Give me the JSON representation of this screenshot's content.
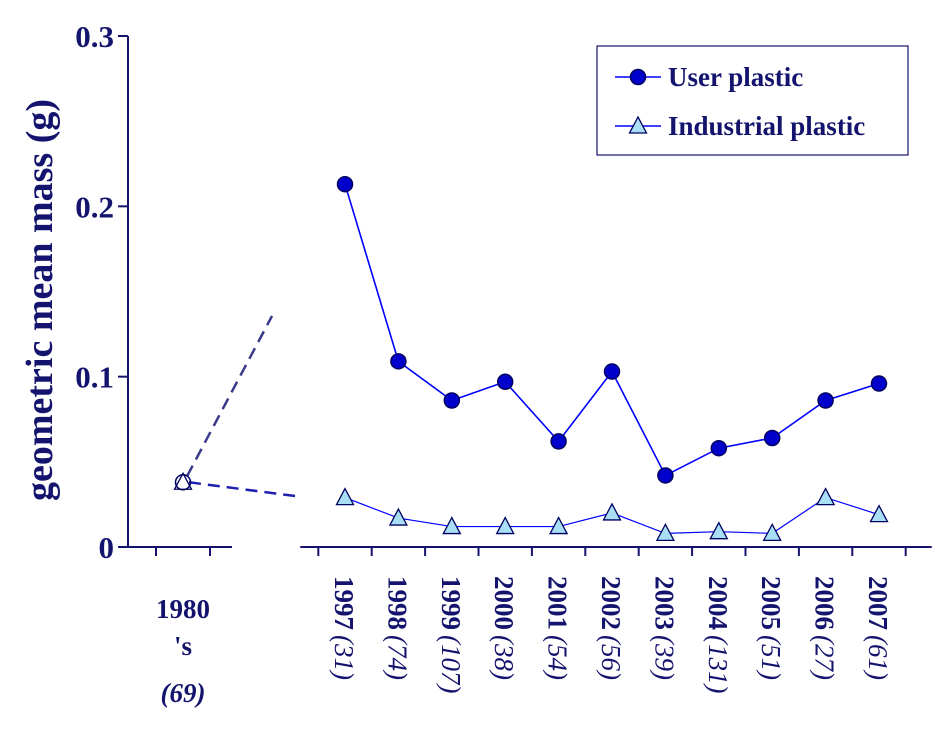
{
  "chart_data": {
    "type": "line",
    "y_label": "geometric mean mass (g)",
    "categories": [
      "1980's",
      "1997",
      "1998",
      "1999",
      "2000",
      "2001",
      "2002",
      "2003",
      "2004",
      "2005",
      "2006",
      "2007"
    ],
    "sample_sizes": [
      "(69)",
      "(31)",
      "(74)",
      "(107)",
      "(38)",
      "(54)",
      "(56)",
      "(39)",
      "(131)",
      "(51)",
      "(27)",
      "(61)"
    ],
    "x_axis_break": true,
    "series": [
      {
        "name": "User plastic",
        "color": "#0000ff",
        "marker": "circle",
        "values": [
          0.038,
          0.213,
          0.109,
          0.086,
          0.097,
          0.062,
          0.103,
          0.042,
          0.058,
          0.064,
          0.086,
          0.096
        ]
      },
      {
        "name": "Industrial plastic",
        "color": "#0000ff",
        "marker": "triangle",
        "values": [
          0.038,
          0.029,
          0.017,
          0.012,
          0.012,
          0.012,
          0.02,
          0.008,
          0.009,
          0.008,
          0.029,
          0.019
        ]
      }
    ],
    "ylim": [
      0,
      0.3
    ],
    "yticks": [
      0,
      0.1,
      0.2,
      0.3
    ],
    "legend": "upper right"
  }
}
